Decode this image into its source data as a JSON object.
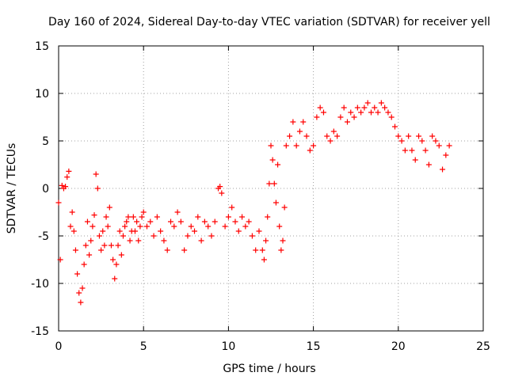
{
  "chart_data": {
    "type": "scatter",
    "title": "Day 160 of 2024, Sidereal Day-to-day VTEC variation (SDTVAR) for receiver yell",
    "xlabel": "GPS time / hours",
    "ylabel": "SDTVAR / TECUs",
    "xlim": [
      0,
      25
    ],
    "ylim": [
      -15,
      15
    ],
    "xticks": [
      0,
      5,
      10,
      15,
      20,
      25
    ],
    "yticks": [
      -15,
      -10,
      -5,
      0,
      5,
      10,
      15
    ],
    "xtick_labels": [
      "0",
      "5",
      "10",
      "15",
      "20",
      "25"
    ],
    "ytick_labels": [
      "-15",
      "-10",
      "-5",
      "0",
      "5",
      "10",
      "15"
    ],
    "grid": true,
    "marker": "+",
    "color": "#ff0000",
    "series": [
      {
        "name": "SDTVAR",
        "x": [
          0.0,
          0.1,
          0.2,
          0.3,
          0.4,
          0.5,
          0.6,
          0.7,
          0.8,
          0.9,
          1.0,
          1.1,
          1.2,
          1.3,
          1.4,
          1.5,
          1.6,
          1.7,
          1.8,
          1.9,
          2.0,
          2.1,
          2.2,
          2.3,
          2.4,
          2.5,
          2.6,
          2.7,
          2.8,
          2.9,
          3.0,
          3.1,
          3.2,
          3.3,
          3.4,
          3.5,
          3.6,
          3.7,
          3.8,
          3.9,
          4.0,
          4.1,
          4.2,
          4.3,
          4.4,
          4.5,
          4.6,
          4.7,
          4.8,
          4.9,
          5.0,
          5.2,
          5.4,
          5.6,
          5.8,
          6.0,
          6.2,
          6.4,
          6.6,
          6.8,
          7.0,
          7.2,
          7.4,
          7.6,
          7.8,
          8.0,
          8.2,
          8.4,
          8.6,
          8.8,
          9.0,
          9.2,
          9.4,
          9.5,
          9.6,
          9.8,
          10.0,
          10.2,
          10.4,
          10.6,
          10.8,
          11.0,
          11.2,
          11.4,
          11.6,
          11.8,
          12.0,
          12.1,
          12.2,
          12.3,
          12.4,
          12.5,
          12.6,
          12.7,
          12.8,
          12.9,
          13.0,
          13.1,
          13.2,
          13.3,
          13.4,
          13.6,
          13.8,
          14.0,
          14.2,
          14.4,
          14.6,
          14.8,
          15.0,
          15.2,
          15.4,
          15.6,
          15.8,
          16.0,
          16.2,
          16.4,
          16.6,
          16.8,
          17.0,
          17.2,
          17.4,
          17.6,
          17.8,
          18.0,
          18.2,
          18.4,
          18.6,
          18.8,
          19.0,
          19.2,
          19.4,
          19.6,
          19.8,
          20.0,
          20.2,
          20.4,
          20.6,
          20.8,
          21.0,
          21.2,
          21.4,
          21.6,
          21.8,
          22.0,
          22.2,
          22.4,
          22.6,
          22.8,
          23.0
        ],
        "y": [
          -1.5,
          -7.5,
          0.3,
          0.0,
          0.2,
          1.2,
          1.8,
          -4.0,
          -2.5,
          -4.5,
          -6.5,
          -9.0,
          -11.0,
          -12.0,
          -10.5,
          -8.0,
          -6.0,
          -3.5,
          -7.0,
          -5.5,
          -4.0,
          -2.8,
          1.5,
          0.0,
          -5.0,
          -6.5,
          -4.5,
          -6.0,
          -3.0,
          -4.0,
          -2.0,
          -6.0,
          -7.5,
          -9.5,
          -8.0,
          -6.0,
          -4.5,
          -7.0,
          -5.0,
          -4.0,
          -3.5,
          -3.0,
          -5.5,
          -4.5,
          -3.0,
          -4.5,
          -3.5,
          -5.5,
          -4.0,
          -3.0,
          -2.5,
          -4.0,
          -3.5,
          -5.0,
          -3.0,
          -4.5,
          -5.5,
          -6.5,
          -3.5,
          -4.0,
          -2.5,
          -3.5,
          -6.5,
          -5.0,
          -4.0,
          -4.5,
          -3.0,
          -5.5,
          -3.5,
          -4.0,
          -5.0,
          -3.5,
          0.0,
          0.2,
          -0.5,
          -4.0,
          -3.0,
          -2.0,
          -3.5,
          -4.5,
          -3.0,
          -4.0,
          -3.5,
          -5.0,
          -6.5,
          -4.5,
          -6.5,
          -7.5,
          -5.5,
          -3.0,
          0.5,
          4.5,
          3.0,
          0.5,
          -1.5,
          2.5,
          -4.0,
          -6.5,
          -5.5,
          -2.0,
          4.5,
          5.5,
          7.0,
          4.5,
          6.0,
          7.0,
          5.5,
          4.0,
          4.5,
          7.5,
          8.5,
          8.0,
          5.5,
          5.0,
          6.0,
          5.5,
          7.5,
          8.5,
          7.0,
          8.0,
          7.5,
          8.5,
          8.0,
          8.5,
          9.0,
          8.0,
          8.5,
          8.0,
          9.0,
          8.5,
          8.0,
          7.5,
          6.5,
          5.5,
          5.0,
          4.0,
          5.5,
          4.0,
          3.0,
          5.5,
          5.0,
          4.0,
          2.5,
          5.5,
          5.0,
          4.5,
          2.0,
          3.5,
          4.5
        ]
      }
    ]
  }
}
